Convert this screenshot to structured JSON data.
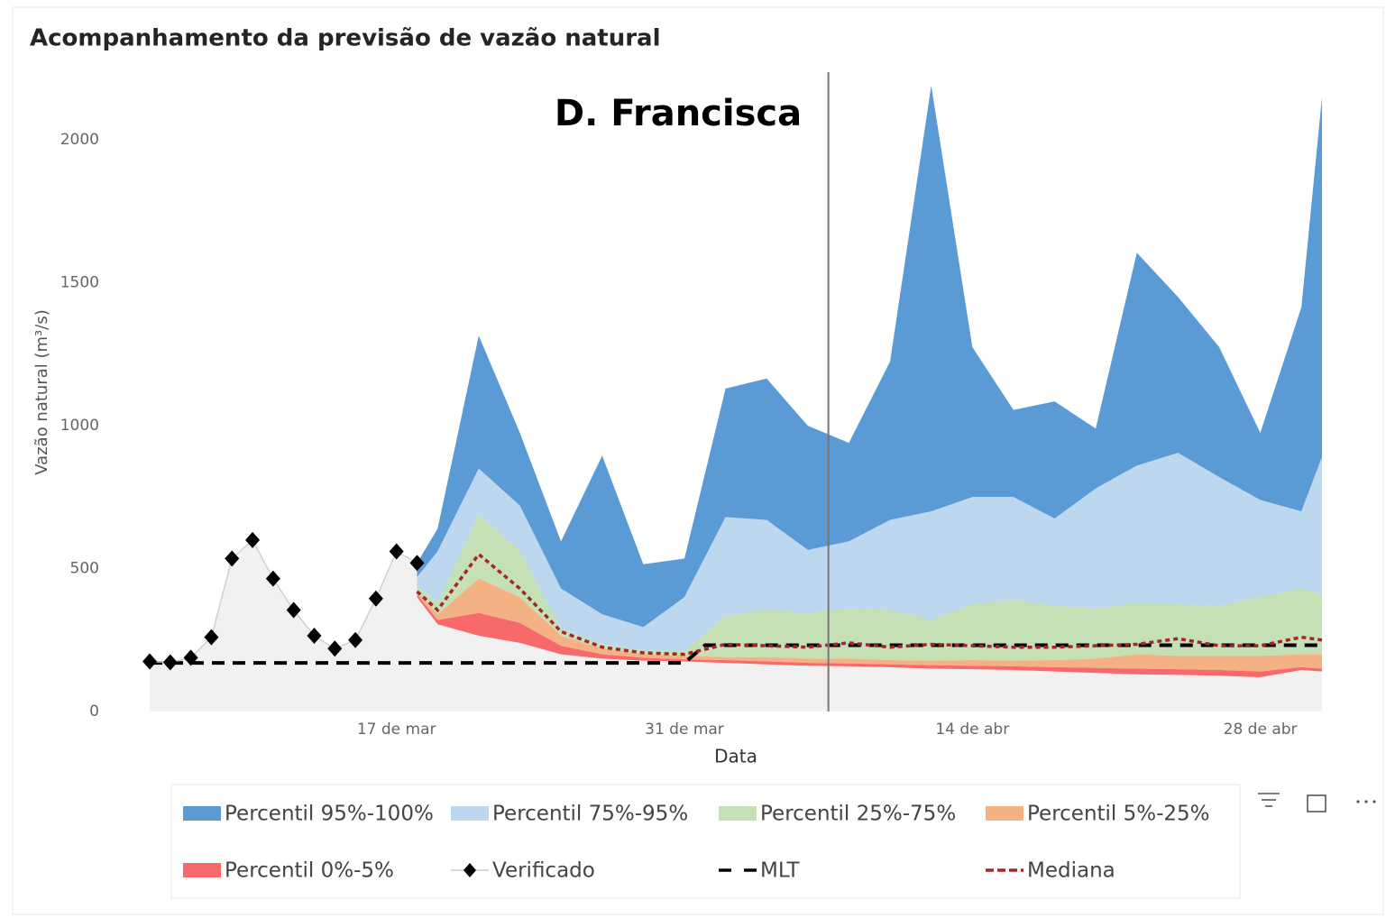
{
  "chart_data": {
    "type": "area",
    "title": "Acompanhamento da previsão de vazão natural",
    "annotation": "D. Francisca",
    "x_label": "Data",
    "y_label": "Vazão natural (m³/s)",
    "xlim": [
      "03-05",
      "05-01"
    ],
    "xticks": [
      {
        "value": "03-17",
        "label": "17 de mar"
      },
      {
        "value": "03-31",
        "label": "31 de mar"
      },
      {
        "value": "04-14",
        "label": "14 de abr"
      },
      {
        "value": "04-28",
        "label": "28 de abr"
      }
    ],
    "ylim": [
      0,
      2237
    ],
    "yticks": [
      0,
      500,
      1000,
      1500,
      2000
    ],
    "grid": false,
    "reference_date": "04-07",
    "series": [
      {
        "name": "Percentil 95%-100%",
        "kind": "band",
        "color": "#5b9bd5",
        "x": [
          "03-18",
          "03-19",
          "03-21",
          "03-23",
          "03-25",
          "03-27",
          "03-29",
          "03-31",
          "04-02",
          "04-04",
          "04-06",
          "04-08",
          "04-10",
          "04-12",
          "04-14",
          "04-16",
          "04-18",
          "04-20",
          "04-22",
          "04-24",
          "04-26",
          "04-28",
          "04-30",
          "05-01"
        ],
        "low": [
          470,
          560,
          850,
          720,
          430,
          340,
          295,
          400,
          680,
          670,
          565,
          595,
          670,
          700,
          750,
          750,
          675,
          780,
          860,
          905,
          820,
          740,
          700,
          890
        ],
        "high": [
          520,
          640,
          1315,
          975,
          595,
          895,
          515,
          535,
          1130,
          1165,
          1000,
          940,
          1225,
          2190,
          1275,
          1055,
          1085,
          990,
          1605,
          1450,
          1275,
          975,
          1415,
          2150
        ]
      },
      {
        "name": "Percentil 75%-95%",
        "kind": "band",
        "color": "#bdd7ee",
        "x": [
          "03-18",
          "03-19",
          "03-21",
          "03-23",
          "03-25",
          "03-27",
          "03-29",
          "03-31",
          "04-02",
          "04-04",
          "04-06",
          "04-08",
          "04-10",
          "04-12",
          "04-14",
          "04-16",
          "04-18",
          "04-20",
          "04-22",
          "04-24",
          "04-26",
          "04-28",
          "04-30",
          "05-01"
        ],
        "low": [
          440,
          380,
          690,
          560,
          290,
          235,
          215,
          210,
          335,
          355,
          345,
          360,
          355,
          320,
          375,
          390,
          370,
          360,
          380,
          375,
          370,
          400,
          430,
          410
        ],
        "high": [
          470,
          560,
          850,
          720,
          430,
          340,
          295,
          400,
          680,
          670,
          565,
          595,
          670,
          700,
          750,
          750,
          675,
          780,
          860,
          905,
          820,
          740,
          700,
          890
        ]
      },
      {
        "name": "Percentil 25%-75%",
        "kind": "band",
        "color": "#c5e0b4",
        "x": [
          "03-18",
          "03-19",
          "03-21",
          "03-23",
          "03-25",
          "03-27",
          "03-29",
          "03-31",
          "04-02",
          "04-04",
          "04-06",
          "04-08",
          "04-10",
          "04-12",
          "04-14",
          "04-16",
          "04-18",
          "04-20",
          "04-22",
          "04-24",
          "04-26",
          "04-28",
          "04-30",
          "05-01"
        ],
        "low": [
          420,
          340,
          465,
          400,
          265,
          220,
          200,
          195,
          190,
          190,
          185,
          185,
          180,
          178,
          180,
          178,
          180,
          185,
          200,
          195,
          195,
          195,
          200,
          200
        ],
        "high": [
          440,
          380,
          690,
          560,
          290,
          235,
          215,
          210,
          335,
          355,
          345,
          360,
          355,
          320,
          375,
          390,
          370,
          360,
          380,
          375,
          370,
          400,
          430,
          410
        ]
      },
      {
        "name": "Percentil 5%-25%",
        "kind": "band",
        "color": "#f4b183",
        "x": [
          "03-18",
          "03-19",
          "03-21",
          "03-23",
          "03-25",
          "03-27",
          "03-29",
          "03-31",
          "04-02",
          "04-04",
          "04-06",
          "04-08",
          "04-10",
          "04-12",
          "04-14",
          "04-16",
          "04-18",
          "04-20",
          "04-22",
          "04-24",
          "04-26",
          "04-28",
          "04-30",
          "05-01"
        ],
        "low": [
          410,
          320,
          345,
          310,
          230,
          200,
          188,
          182,
          180,
          175,
          170,
          168,
          165,
          162,
          160,
          158,
          155,
          152,
          150,
          148,
          145,
          140,
          155,
          150
        ],
        "high": [
          420,
          340,
          465,
          400,
          265,
          220,
          200,
          195,
          190,
          190,
          185,
          185,
          180,
          178,
          180,
          178,
          180,
          185,
          200,
          195,
          195,
          195,
          200,
          200
        ]
      },
      {
        "name": "Percentil 0%-5%",
        "kind": "band",
        "color": "#f8696b",
        "x": [
          "03-18",
          "03-19",
          "03-21",
          "03-23",
          "03-25",
          "03-27",
          "03-29",
          "03-31",
          "04-02",
          "04-04",
          "04-06",
          "04-08",
          "04-10",
          "04-12",
          "04-14",
          "04-16",
          "04-18",
          "04-20",
          "04-22",
          "04-24",
          "04-26",
          "04-28",
          "04-30",
          "05-01"
        ],
        "low": [
          400,
          305,
          265,
          240,
          200,
          185,
          178,
          175,
          170,
          165,
          160,
          158,
          155,
          150,
          148,
          145,
          140,
          135,
          130,
          128,
          125,
          120,
          145,
          140
        ],
        "high": [
          410,
          320,
          345,
          310,
          230,
          200,
          188,
          182,
          180,
          175,
          170,
          168,
          165,
          162,
          160,
          158,
          155,
          152,
          150,
          148,
          145,
          140,
          155,
          150
        ]
      },
      {
        "name": "Verificado",
        "kind": "markers",
        "color": "#000000",
        "x": [
          "03-05",
          "03-06",
          "03-07",
          "03-08",
          "03-09",
          "03-10",
          "03-11",
          "03-12",
          "03-13",
          "03-14",
          "03-15",
          "03-16",
          "03-17",
          "03-18"
        ],
        "values": [
          175,
          172,
          188,
          260,
          535,
          600,
          465,
          355,
          265,
          220,
          250,
          395,
          560,
          520
        ]
      },
      {
        "name": "MLT",
        "kind": "dashed",
        "color": "#000000",
        "x": [
          "03-05",
          "03-31",
          "04-01",
          "05-01"
        ],
        "values": [
          170,
          170,
          232,
          232
        ]
      },
      {
        "name": "Mediana",
        "kind": "dotted",
        "color": "#a4262c",
        "x": [
          "03-18",
          "03-19",
          "03-21",
          "03-23",
          "03-25",
          "03-27",
          "03-29",
          "03-31",
          "04-02",
          "04-04",
          "04-06",
          "04-08",
          "04-10",
          "04-12",
          "04-14",
          "04-16",
          "04-18",
          "04-20",
          "04-22",
          "04-24",
          "04-26",
          "04-28",
          "04-30",
          "05-01"
        ],
        "values": [
          420,
          355,
          550,
          430,
          280,
          225,
          205,
          200,
          235,
          230,
          225,
          240,
          225,
          235,
          230,
          225,
          225,
          230,
          235,
          255,
          230,
          230,
          260,
          250
        ]
      }
    ]
  }
}
